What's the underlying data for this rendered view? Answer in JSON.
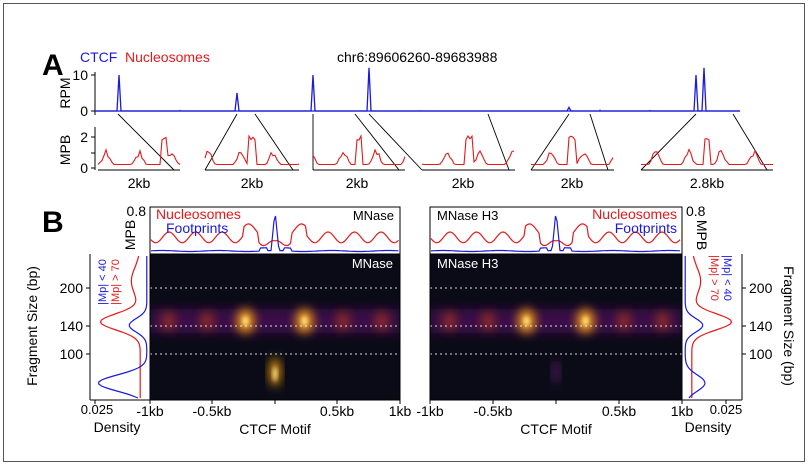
{
  "panel_a": {
    "panel_label": "A",
    "legend": {
      "ctcf": "CTCF",
      "nucleosomes": "Nucleosomes"
    },
    "locus": "chr6:89606260-89683988",
    "rpm_axis": {
      "label": "RPM",
      "ticks": [
        "10",
        "0"
      ]
    },
    "mpb_axis": {
      "label": "MPB",
      "ticks": [
        "2",
        "1",
        "0"
      ]
    },
    "zoom_scale_labels": [
      "2kb",
      "2kb",
      "2kb",
      "2kb",
      "2kb",
      "2.8kb"
    ]
  },
  "panel_b": {
    "panel_label": "B",
    "left": {
      "profile_legend": {
        "nucleosomes": "Nucleosomes",
        "footprints": "Footprints"
      },
      "profile_tag": "MNase",
      "heatmap_tag": "MNase",
      "mpb_axis": {
        "label": "MPB",
        "ticks": [
          "0.8"
        ]
      },
      "y_axis": {
        "label": "Fragment Size (bp)",
        "ticks": [
          "200",
          "140",
          "100"
        ]
      },
      "density_legend": {
        "short": "|Mp| < 40",
        "long": "|Mp| > 70"
      },
      "density_axis": {
        "label": "Density",
        "ticks": [
          "0.025"
        ]
      },
      "x_axis": {
        "label": "CTCF Motif",
        "ticks": [
          "-1kb",
          "-0.5kb",
          "0kb",
          "0.5kb",
          "1kb"
        ]
      }
    },
    "right": {
      "profile_legend": {
        "nucleosomes": "Nucleosomes",
        "footprints": "Footprints"
      },
      "profile_tag": "MNase H3",
      "heatmap_tag": "MNase H3",
      "mpb_axis": {
        "label": "MPB",
        "ticks": [
          "0.8"
        ]
      },
      "y_axis": {
        "label": "Fragment Size (bp)",
        "ticks": [
          "200",
          "140",
          "100"
        ]
      },
      "density_legend": {
        "short": "|Mp| < 40",
        "long": "|Mp| > 70"
      },
      "density_axis": {
        "label": "Density",
        "ticks": [
          "0.025"
        ]
      },
      "x_axis": {
        "label": "CTCF Motif",
        "ticks": [
          "-1kb",
          "-0.5kb",
          "0kb",
          "0.5kb",
          "1kb"
        ]
      }
    }
  },
  "colors": {
    "ctcf": "#1a1adb",
    "nucleosomes": "#e31a1c",
    "heatmap_bg": "#0b0b18",
    "heatmap_hot": "#fde68a"
  },
  "chart_data": [
    {
      "type": "line",
      "title": "chr6:89606260-89683988",
      "ylabel": "RPM",
      "ylim": [
        0,
        10
      ],
      "series": [
        {
          "name": "CTCF",
          "peaks": [
            10,
            5,
            10,
            12,
            1,
            10,
            12
          ]
        }
      ]
    },
    {
      "type": "line",
      "ylabel": "MPB",
      "ylim": [
        0,
        2.5
      ],
      "series": [
        {
          "name": "Nucleosomes"
        }
      ],
      "scale_bars": [
        "2kb",
        "2kb",
        "2kb",
        "2kb",
        "2kb",
        "2.8kb"
      ]
    },
    {
      "type": "heatmap",
      "heatmap_title": "MNase",
      "xlabel": "CTCF Motif",
      "ylabel": "Fragment Size (bp)",
      "xlim": [
        -1000,
        1000
      ],
      "ylim": [
        35,
        250
      ],
      "reference_lines_bp": [
        200,
        140,
        100
      ],
      "nucleosome_band_bp": 150,
      "series": [
        {
          "name": "Nucleosomes",
          "profile_ylim": [
            0,
            0.8
          ]
        },
        {
          "name": "Footprints"
        }
      ],
      "density": {
        "xlabel": "Density",
        "xlim": [
          0.025,
          0
        ],
        "series": [
          "|Mp| < 40",
          "|Mp| > 70"
        ]
      }
    },
    {
      "type": "heatmap",
      "heatmap_title": "MNase H3",
      "xlabel": "CTCF Motif",
      "ylabel": "Fragment Size (bp)",
      "xlim": [
        -1000,
        1000
      ],
      "ylim": [
        35,
        250
      ],
      "reference_lines_bp": [
        200,
        140,
        100
      ],
      "nucleosome_band_bp": 150,
      "series": [
        {
          "name": "Nucleosomes",
          "profile_ylim": [
            0,
            0.8
          ]
        },
        {
          "name": "Footprints"
        }
      ],
      "density": {
        "xlabel": "Density",
        "xlim": [
          0,
          0.025
        ],
        "series": [
          "|Mp| < 40",
          "|Mp| > 70"
        ]
      }
    }
  ]
}
